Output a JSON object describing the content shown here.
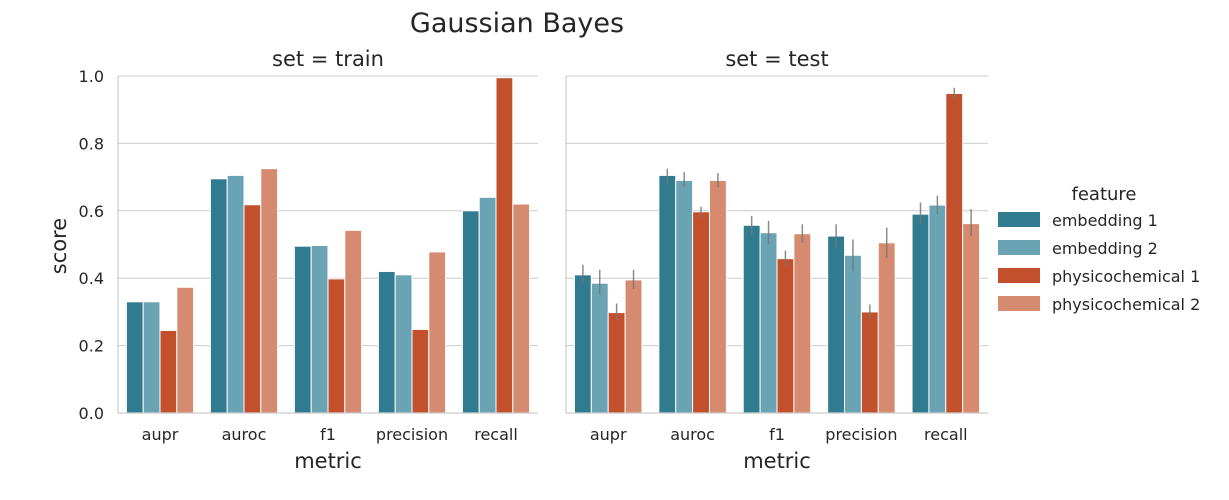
{
  "chart_data": {
    "type": "bar",
    "title": "Gaussian Bayes",
    "xlabel": "metric",
    "ylabel": "score",
    "ylim": [
      0,
      1.0
    ],
    "yticks": [
      "0.0",
      "0.2",
      "0.4",
      "0.6",
      "0.8",
      "1.0"
    ],
    "grid": "horizontal",
    "legend": {
      "title": "feature",
      "placement": "right",
      "entries": [
        "embedding 1",
        "embedding 2",
        "physicochemical 1",
        "physicochemical 2"
      ]
    },
    "colors": [
      "#307b8f",
      "#6aa4b4",
      "#c3502c",
      "#d68a70"
    ],
    "categories": [
      "aupr",
      "auroc",
      "f1",
      "precision",
      "recall"
    ],
    "panels": [
      {
        "title": "set = train",
        "series": [
          {
            "name": "embedding 1",
            "values": [
              0.33,
              0.695,
              0.495,
              0.42,
              0.6
            ]
          },
          {
            "name": "embedding 2",
            "values": [
              0.33,
              0.705,
              0.497,
              0.41,
              0.64
            ]
          },
          {
            "name": "physicochemical 1",
            "values": [
              0.245,
              0.618,
              0.398,
              0.248,
              0.995
            ]
          },
          {
            "name": "physicochemical 2",
            "values": [
              0.373,
              0.725,
              0.542,
              0.478,
              0.62
            ]
          }
        ],
        "errors": null
      },
      {
        "title": "set = test",
        "series": [
          {
            "name": "embedding 1",
            "values": [
              0.41,
              0.705,
              0.557,
              0.525,
              0.59
            ]
          },
          {
            "name": "embedding 2",
            "values": [
              0.385,
              0.69,
              0.535,
              0.468,
              0.617
            ]
          },
          {
            "name": "physicochemical 1",
            "values": [
              0.298,
              0.597,
              0.458,
              0.3,
              0.948
            ]
          },
          {
            "name": "physicochemical 2",
            "values": [
              0.395,
              0.69,
              0.532,
              0.505,
              0.562
            ]
          }
        ],
        "errors": [
          [
            [
              0.385,
              0.44
            ],
            [
              0.68,
              0.725
            ],
            [
              0.53,
              0.585
            ],
            [
              0.49,
              0.56
            ],
            [
              0.56,
              0.625
            ]
          ],
          [
            [
              0.35,
              0.425
            ],
            [
              0.67,
              0.715
            ],
            [
              0.5,
              0.57
            ],
            [
              0.42,
              0.515
            ],
            [
              0.59,
              0.645
            ]
          ],
          [
            [
              0.275,
              0.325
            ],
            [
              0.58,
              0.612
            ],
            [
              0.435,
              0.482
            ],
            [
              0.28,
              0.322
            ],
            [
              0.932,
              0.965
            ]
          ],
          [
            [
              0.368,
              0.425
            ],
            [
              0.67,
              0.712
            ],
            [
              0.505,
              0.56
            ],
            [
              0.46,
              0.55
            ],
            [
              0.525,
              0.605
            ]
          ]
        ]
      }
    ]
  }
}
